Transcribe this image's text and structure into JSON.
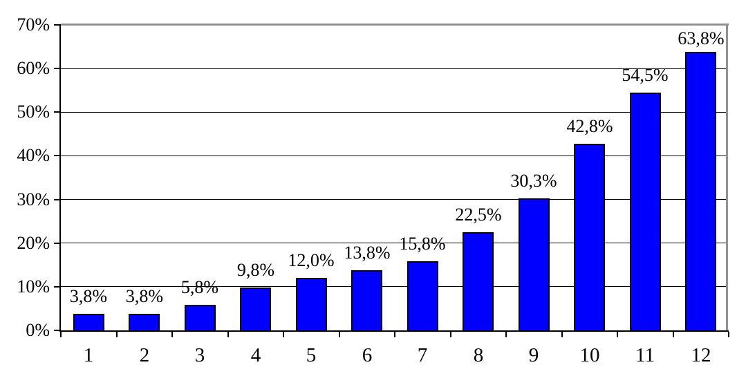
{
  "chart_data": {
    "type": "bar",
    "title": "",
    "xlabel": "",
    "ylabel": "",
    "categories": [
      "1",
      "2",
      "3",
      "4",
      "5",
      "6",
      "7",
      "8",
      "9",
      "10",
      "11",
      "12"
    ],
    "values": [
      3.8,
      3.8,
      5.8,
      9.8,
      12.0,
      13.8,
      15.8,
      22.5,
      30.3,
      42.8,
      54.5,
      63.8
    ],
    "data_labels": [
      "3,8%",
      "3,8%",
      "5,8%",
      "9,8%",
      "12,0%",
      "13,8%",
      "15,8%",
      "22,5%",
      "30,3%",
      "42,8%",
      "54,5%",
      "63,8%"
    ],
    "y_tick_labels": [
      "0%",
      "10%",
      "20%",
      "30%",
      "40%",
      "50%",
      "60%",
      "70%"
    ],
    "ylim": [
      0,
      70
    ],
    "y_tick_step": 10,
    "grid": "horizontal",
    "legend": "none",
    "decimal_separator": ",",
    "colors": {
      "bar_fill": "#0000FE",
      "bar_border": "#000000",
      "gridline": "#000000",
      "axis": "#000000",
      "plot_area_border": "#919191",
      "background": "#FFFFFF",
      "text": "#000000"
    }
  }
}
